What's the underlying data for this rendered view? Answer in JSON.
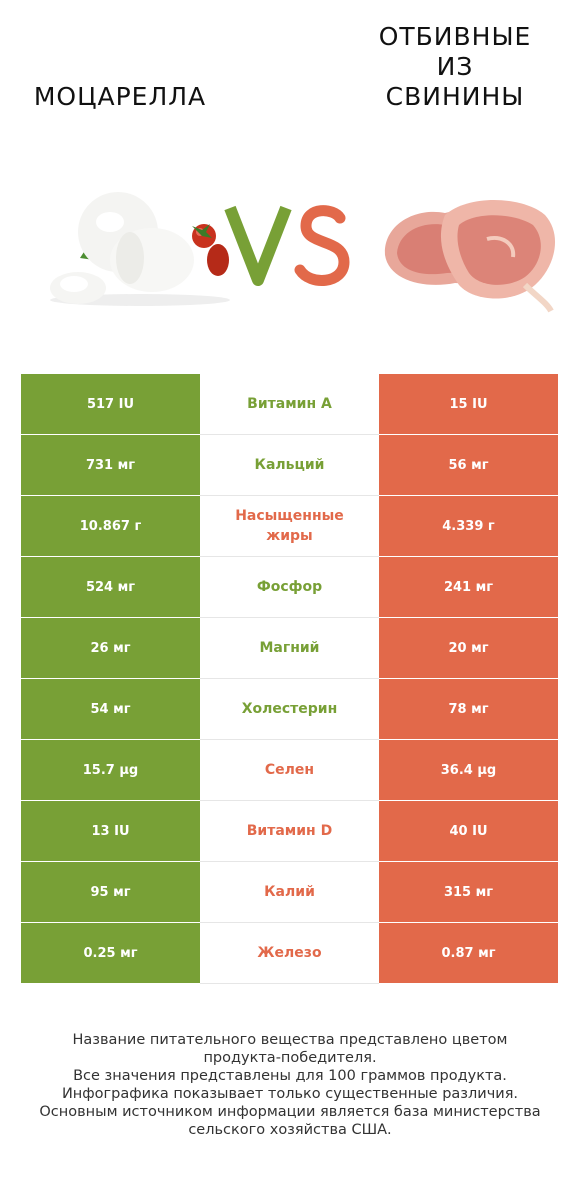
{
  "header": {
    "left_title": "МОЦАРЕЛЛА",
    "right_title_lines": [
      "ОТБИВНЫЕ",
      "ИЗ",
      "СВИНИНЫ"
    ],
    "vs_text": "VS"
  },
  "colors": {
    "left": "#78a036",
    "right": "#e2694a"
  },
  "rows": [
    {
      "left": "517 IU",
      "label": "Витамин A",
      "right": "15 IU",
      "winner": "left"
    },
    {
      "left": "731 мг",
      "label": "Кальций",
      "right": "56 мг",
      "winner": "left"
    },
    {
      "left": "10.867 г",
      "label": "Насыщенные жиры",
      "right": "4.339 г",
      "winner": "right"
    },
    {
      "left": "524 мг",
      "label": "Фосфор",
      "right": "241 мг",
      "winner": "left"
    },
    {
      "left": "26 мг",
      "label": "Магний",
      "right": "20 мг",
      "winner": "left"
    },
    {
      "left": "54 мг",
      "label": "Холестерин",
      "right": "78 мг",
      "winner": "left"
    },
    {
      "left": "15.7 µg",
      "label": "Селен",
      "right": "36.4 µg",
      "winner": "right"
    },
    {
      "left": "13 IU",
      "label": "Витамин D",
      "right": "40 IU",
      "winner": "right"
    },
    {
      "left": "95 мг",
      "label": "Калий",
      "right": "315 мг",
      "winner": "right"
    },
    {
      "left": "0.25 мг",
      "label": "Железо",
      "right": "0.87 мг",
      "winner": "right"
    }
  ],
  "footer": [
    "Название питательного вещества представлено цветом",
    "продукта-победителя.",
    "Все значения представлены для 100 граммов продукта.",
    "Инфографика показывает только существенные различия.",
    "Основным источником информации является база министерства",
    "сельского хозяйства США."
  ]
}
